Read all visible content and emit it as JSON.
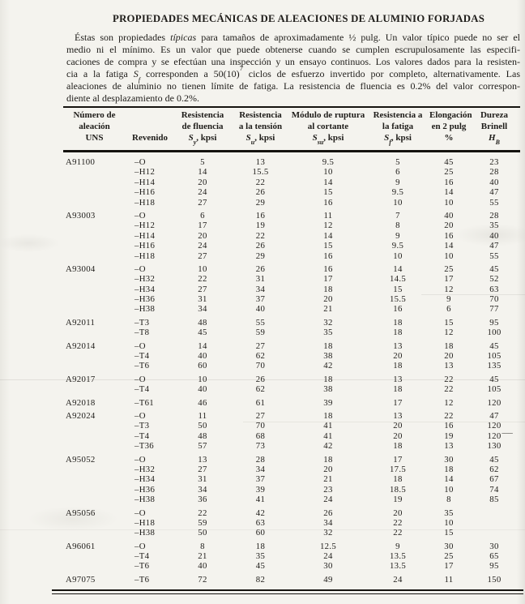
{
  "colors": {
    "paper": "#f4f3ee",
    "ink": "#1e1c19",
    "rule": "#15130f"
  },
  "title": "PROPIEDADES MECÁNICAS DE ALEACIONES DE ALUMINIO FORJADAS",
  "intro_lines": [
    [
      {
        "t": "Éstas son propiedades "
      },
      {
        "t": "típicas",
        "s": "i"
      },
      {
        "t": " para tamaños de aproximadamente ½ pulg. Un valor típico puede no ser el"
      }
    ],
    [
      {
        "t": "medio ni el mínimo. Es un valor que puede obtenerse cuando se cumplen escrupulosamente las especifi-"
      }
    ],
    [
      {
        "t": "caciones de compra y se efectúan una inspección y un ensayo continuos. Los valores dados para la resisten-"
      }
    ],
    [
      {
        "t": "cia a la fatiga "
      },
      {
        "t": "S",
        "s": "i"
      },
      {
        "t": "f",
        "s": "isub"
      },
      {
        "t": " corresponden a 50(10)"
      },
      {
        "t": "7",
        "s": "sup"
      },
      {
        "t": " ciclos de esfuerzo invertido por completo, alternativamente. Las"
      }
    ],
    [
      {
        "t": "aleaciones de aluminio no tienen límite de fatiga. La resistencia de fluencia es 0.2% del valor correspon-"
      }
    ],
    [
      {
        "t": "diente al desplazamiento de 0.2%."
      }
    ]
  ],
  "table": {
    "columns": [
      {
        "lines": [
          "Número de",
          "aleación"
        ],
        "symbol": {
          "plain": "UNS"
        }
      },
      {
        "lines": [],
        "symbol": {
          "plain": "Revenido"
        }
      },
      {
        "lines": [
          "Resistencia",
          "de fluencia"
        ],
        "symbol": {
          "base": "S",
          "sub": "y",
          "suffix": ", kpsi"
        }
      },
      {
        "lines": [
          "Resistencia",
          "a la tensión"
        ],
        "symbol": {
          "base": "S",
          "sub": "u",
          "suffix": ", kpsi"
        }
      },
      {
        "lines": [
          "Módulo de ruptura",
          "al cortante"
        ],
        "symbol": {
          "base": "S",
          "sub": "su",
          "suffix": ", kpsi"
        }
      },
      {
        "lines": [
          "Resistencia a",
          "la fatiga"
        ],
        "symbol": {
          "base": "S",
          "sub": "f",
          "suffix": ", kpsi"
        }
      },
      {
        "lines": [
          "Elongación",
          "en 2 pulg"
        ],
        "symbol": {
          "plain": "%"
        }
      },
      {
        "lines": [
          "Dureza",
          "Brinell"
        ],
        "symbol": {
          "base": "H",
          "sub": "B",
          "suffix": ""
        }
      }
    ],
    "groups": [
      {
        "alloy": "A91100",
        "rows": [
          [
            "–O",
            "5",
            "13",
            "9.5",
            "5",
            "45",
            "23"
          ],
          [
            "–H12",
            "14",
            "15.5",
            "10",
            "6",
            "25",
            "28"
          ],
          [
            "–H14",
            "20",
            "22",
            "14",
            "9",
            "16",
            "40"
          ],
          [
            "–H16",
            "24",
            "26",
            "15",
            "9.5",
            "14",
            "47"
          ],
          [
            "–H18",
            "27",
            "29",
            "16",
            "10",
            "10",
            "55"
          ]
        ]
      },
      {
        "alloy": "A93003",
        "rows": [
          [
            "–O",
            "6",
            "16",
            "11",
            "7",
            "40",
            "28"
          ],
          [
            "–H12",
            "17",
            "19",
            "12",
            "8",
            "20",
            "35"
          ],
          [
            "–H14",
            "20",
            "22",
            "14",
            "9",
            "16",
            "40"
          ],
          [
            "–H16",
            "24",
            "26",
            "15",
            "9.5",
            "14",
            "47"
          ],
          [
            "–H18",
            "27",
            "29",
            "16",
            "10",
            "10",
            "55"
          ]
        ]
      },
      {
        "alloy": "A93004",
        "rows": [
          [
            "–O",
            "10",
            "26",
            "16",
            "14",
            "25",
            "45"
          ],
          [
            "–H32",
            "22",
            "31",
            "17",
            "14.5",
            "17",
            "52"
          ],
          [
            "–H34",
            "27",
            "34",
            "18",
            "15",
            "12",
            "63"
          ],
          [
            "–H36",
            "31",
            "37",
            "20",
            "15.5",
            "9",
            "70"
          ],
          [
            "–H38",
            "34",
            "40",
            "21",
            "16",
            "6",
            "77"
          ]
        ]
      },
      {
        "alloy": "A92011",
        "rows": [
          [
            "–T3",
            "48",
            "55",
            "32",
            "18",
            "15",
            "95"
          ],
          [
            "–T8",
            "45",
            "59",
            "35",
            "18",
            "12",
            "100"
          ]
        ]
      },
      {
        "alloy": "A92014",
        "rows": [
          [
            "–O",
            "14",
            "27",
            "18",
            "13",
            "18",
            "45"
          ],
          [
            "–T4",
            "40",
            "62",
            "38",
            "20",
            "20",
            "105"
          ],
          [
            "–T6",
            "60",
            "70",
            "42",
            "18",
            "13",
            "135"
          ]
        ]
      },
      {
        "alloy": "A92017",
        "rows": [
          [
            "–O",
            "10",
            "26",
            "18",
            "13",
            "22",
            "45"
          ],
          [
            "–T4",
            "40",
            "62",
            "38",
            "18",
            "22",
            "105"
          ]
        ]
      },
      {
        "alloy": "A92018",
        "rows": [
          [
            "–T61",
            "46",
            "61",
            "39",
            "17",
            "12",
            "120"
          ]
        ]
      },
      {
        "alloy": "A92024",
        "rows": [
          [
            "–O",
            "11",
            "27",
            "18",
            "13",
            "22",
            "47"
          ],
          [
            "–T3",
            "50",
            "70",
            "41",
            "20",
            "16",
            "120"
          ],
          [
            "–T4",
            "48",
            "68",
            "41",
            "20",
            "19",
            "120"
          ],
          [
            "–T36",
            "57",
            "73",
            "42",
            "18",
            "13",
            "130"
          ]
        ]
      },
      {
        "alloy": "A95052",
        "rows": [
          [
            "–O",
            "13",
            "28",
            "18",
            "17",
            "30",
            "45"
          ],
          [
            "–H32",
            "27",
            "34",
            "20",
            "17.5",
            "18",
            "62"
          ],
          [
            "–H34",
            "31",
            "37",
            "21",
            "18",
            "14",
            "67"
          ],
          [
            "–H36",
            "34",
            "39",
            "23",
            "18.5",
            "10",
            "74"
          ],
          [
            "–H38",
            "36",
            "41",
            "24",
            "19",
            "8",
            "85"
          ]
        ]
      },
      {
        "alloy": "A95056",
        "rows": [
          [
            "–O",
            "22",
            "42",
            "26",
            "20",
            "35",
            ""
          ],
          [
            "–H18",
            "59",
            "63",
            "34",
            "22",
            "10",
            ""
          ],
          [
            "–H38",
            "50",
            "60",
            "32",
            "22",
            "15",
            ""
          ]
        ]
      },
      {
        "alloy": "A96061",
        "rows": [
          [
            "–O",
            "8",
            "18",
            "12.5",
            "9",
            "30",
            "30"
          ],
          [
            "–T4",
            "21",
            "35",
            "24",
            "13.5",
            "25",
            "65"
          ],
          [
            "–T6",
            "40",
            "45",
            "30",
            "13.5",
            "17",
            "95"
          ]
        ]
      },
      {
        "alloy": "A97075",
        "rows": [
          [
            "–T6",
            "72",
            "82",
            "49",
            "24",
            "11",
            "150"
          ]
        ]
      }
    ],
    "margin_mark": "-----"
  }
}
